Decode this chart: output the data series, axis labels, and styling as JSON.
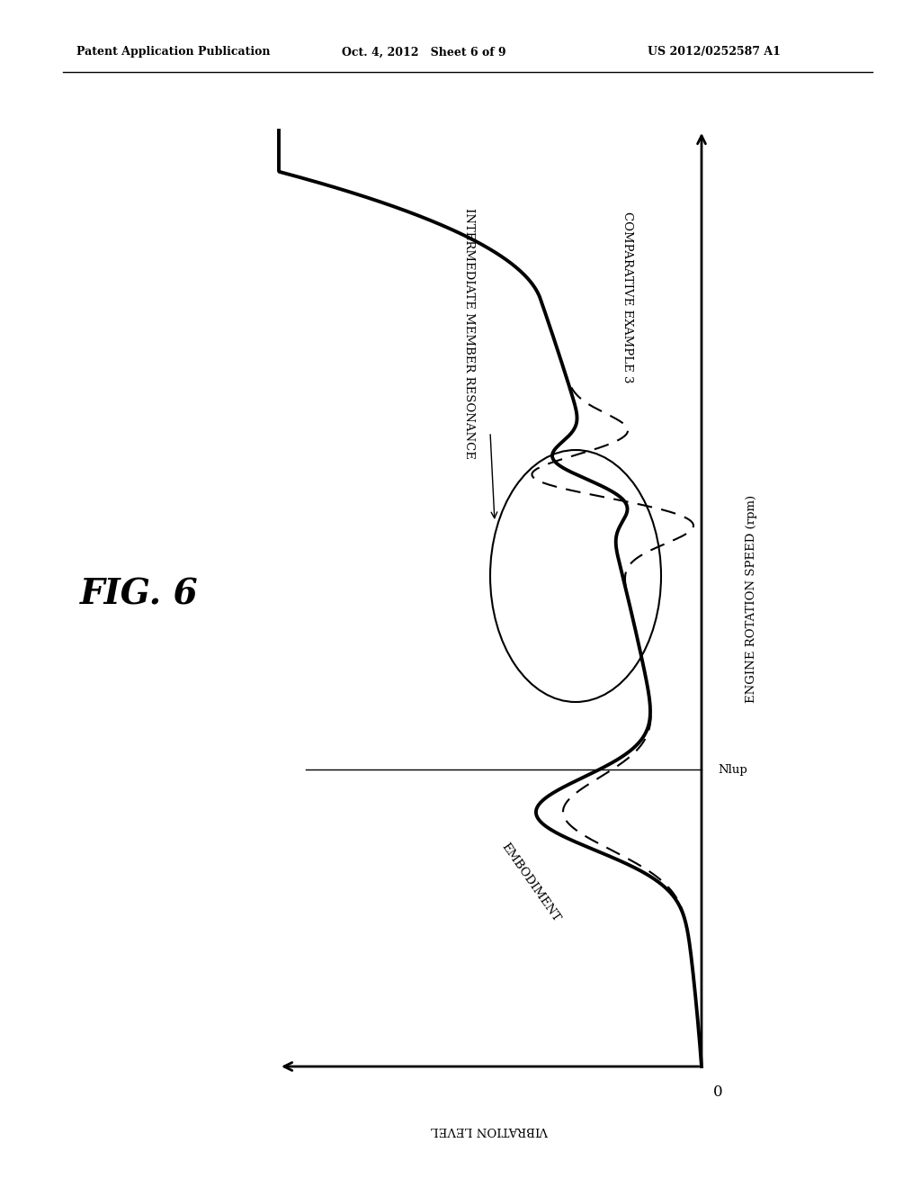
{
  "patent_header_left": "Patent Application Publication",
  "patent_header_mid": "Oct. 4, 2012   Sheet 6 of 9",
  "patent_header_right": "US 2012/0252587 A1",
  "engine_speed_label": "ENGINE ROTATION SPEED (rpm)",
  "vibration_label": "VIBRATION LEVEL",
  "nlup_label": "Nlup",
  "zero_label": "0",
  "embodiment_label": "EMBODIMENT",
  "comparative_label": "COMPARATIVE EXAMPLE 3",
  "resonance_label": "INTERMEDIATE MEMBER RESONANCE",
  "fig_label": "FIG. 6",
  "bg_color": "#ffffff"
}
